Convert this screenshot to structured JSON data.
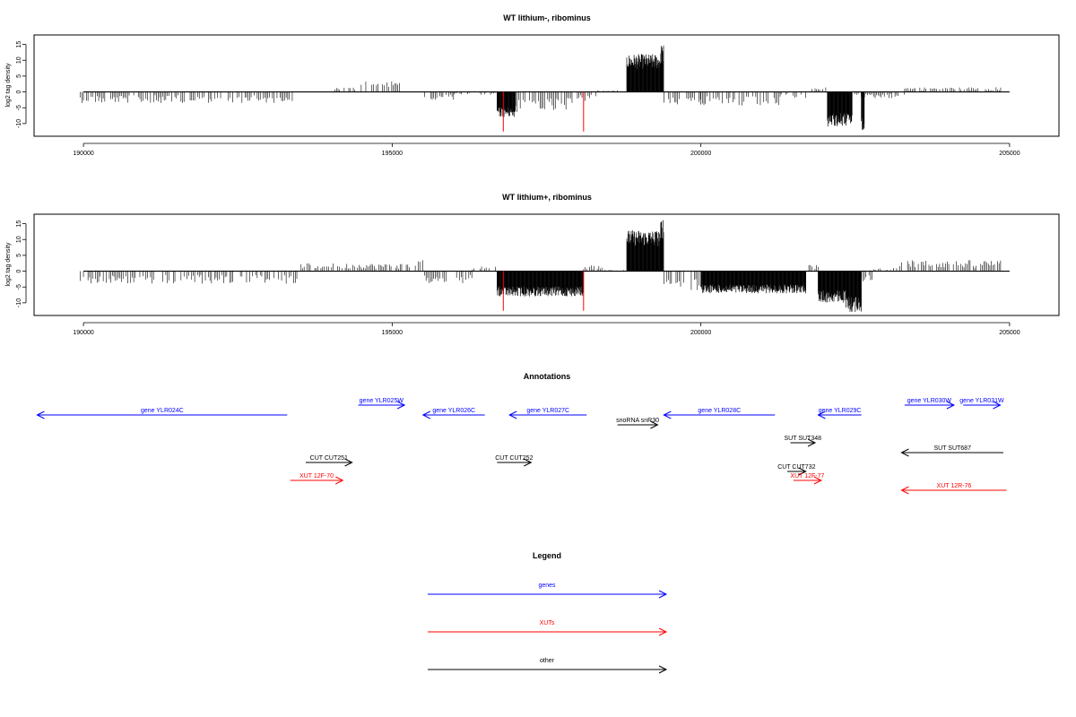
{
  "panels": [
    {
      "id": "lithium_minus",
      "title": "WT lithium-, ribominus",
      "ylabel": "log2 tag density",
      "chart_data": {
        "type": "bar",
        "title": "WT lithium-, ribominus",
        "xlabel": "",
        "ylabel": "log2 tag density",
        "xlim": [
          189200,
          205800
        ],
        "ylim": [
          -14,
          18
        ],
        "xticks": [
          190000,
          195000,
          200000,
          205000
        ],
        "yticks": [
          -10,
          -5,
          0,
          5,
          10,
          15
        ],
        "grid": false,
        "baseline": [
          190000,
          205000
        ],
        "markers": [
          196800,
          198100
        ],
        "marker_color": "#ff0000",
        "bar_color": "#000000",
        "segments": [
          [
            189950,
            193400,
            -3.5
          ],
          [
            193400,
            194050,
            0
          ],
          [
            194050,
            194400,
            1.5
          ],
          [
            194400,
            195200,
            3.5
          ],
          [
            195200,
            195500,
            0
          ],
          [
            195500,
            196000,
            -2.5
          ],
          [
            196000,
            196700,
            -1
          ],
          [
            196700,
            197000,
            -8
          ],
          [
            197000,
            198000,
            -6.5
          ],
          [
            198000,
            198300,
            -3
          ],
          [
            198300,
            198650,
            0.5
          ],
          [
            198650,
            198800,
            0
          ],
          [
            198800,
            199350,
            12
          ],
          [
            199350,
            199400,
            15
          ],
          [
            199400,
            200000,
            -4
          ],
          [
            200000,
            201300,
            -4.5
          ],
          [
            201300,
            201800,
            -2
          ],
          [
            201800,
            202050,
            1.5
          ],
          [
            202050,
            202450,
            -11
          ],
          [
            202450,
            202600,
            -2
          ],
          [
            202600,
            202650,
            -12
          ],
          [
            202650,
            203300,
            -2
          ],
          [
            203300,
            204900,
            1.5
          ]
        ]
      }
    },
    {
      "id": "lithium_plus",
      "title": "WT lithium+, ribominus",
      "ylabel": "log2 tag density",
      "chart_data": {
        "type": "bar",
        "title": "WT lithium+, ribominus",
        "xlabel": "",
        "ylabel": "log2 tag density",
        "xlim": [
          189200,
          205800
        ],
        "ylim": [
          -14,
          18
        ],
        "xticks": [
          190000,
          195000,
          200000,
          205000
        ],
        "yticks": [
          -10,
          -5,
          0,
          5,
          10,
          15
        ],
        "grid": false,
        "baseline": [
          190000,
          205000
        ],
        "markers": [
          196800,
          198100
        ],
        "marker_color": "#ff0000",
        "bar_color": "#000000",
        "segments": [
          [
            189950,
            193500,
            -4
          ],
          [
            193500,
            195300,
            2.5
          ],
          [
            195300,
            195500,
            3.5
          ],
          [
            195500,
            196300,
            -4
          ],
          [
            196300,
            196700,
            1.5
          ],
          [
            196700,
            198100,
            -8
          ],
          [
            198100,
            198400,
            2
          ],
          [
            198400,
            198800,
            0.5
          ],
          [
            198800,
            199350,
            13
          ],
          [
            199350,
            199400,
            17
          ],
          [
            199400,
            200000,
            -6
          ],
          [
            200000,
            201700,
            -7
          ],
          [
            201700,
            201900,
            2
          ],
          [
            201900,
            202350,
            -10
          ],
          [
            202350,
            202600,
            -13
          ],
          [
            202600,
            202800,
            -4
          ],
          [
            202800,
            203200,
            1
          ],
          [
            203200,
            204900,
            3.5
          ]
        ]
      }
    }
  ],
  "annotations": {
    "title": "Annotations",
    "xlim": [
      189200,
      205800
    ],
    "features": [
      {
        "label": "gene YLR024C",
        "start": 189250,
        "end": 193300,
        "dir": "left",
        "row": 2,
        "color": "#0000ff"
      },
      {
        "label": "gene YLR025W",
        "start": 194450,
        "end": 195200,
        "dir": "right",
        "row": 1,
        "color": "#0000ff"
      },
      {
        "label": "gene YLR026C",
        "start": 195500,
        "end": 196500,
        "dir": "left",
        "row": 2,
        "color": "#0000ff"
      },
      {
        "label": "gene YLR027C",
        "start": 196900,
        "end": 198150,
        "dir": "left",
        "row": 2,
        "color": "#0000ff"
      },
      {
        "label": "snoRNA snR30",
        "start": 198650,
        "end": 199300,
        "dir": "right",
        "row": 3,
        "color": "#000000"
      },
      {
        "label": "gene YLR028C",
        "start": 199400,
        "end": 201200,
        "dir": "left",
        "row": 2,
        "color": "#0000ff"
      },
      {
        "label": "gene YLR029C",
        "start": 201900,
        "end": 202600,
        "dir": "left",
        "row": 2,
        "color": "#0000ff"
      },
      {
        "label": "gene YLR030W",
        "start": 203300,
        "end": 204100,
        "dir": "right",
        "row": 1,
        "color": "#0000ff"
      },
      {
        "label": "gene YLR031W",
        "start": 204250,
        "end": 204850,
        "dir": "right",
        "row": 1,
        "color": "#0000ff"
      },
      {
        "label": "SUT SUT348",
        "start": 201450,
        "end": 201850,
        "dir": "right",
        "row": 4,
        "color": "#000000"
      },
      {
        "label": "SUT SUT687",
        "start": 203250,
        "end": 204900,
        "dir": "left",
        "row": 5,
        "color": "#000000"
      },
      {
        "label": "CUT CUT251",
        "start": 193600,
        "end": 194350,
        "dir": "right",
        "row": 6,
        "color": "#000000"
      },
      {
        "label": "CUT CUT252",
        "start": 196700,
        "end": 197250,
        "dir": "right",
        "row": 6,
        "color": "#000000"
      },
      {
        "label": "CUT CUT732",
        "start": 201400,
        "end": 201700,
        "dir": "right",
        "row": 7,
        "color": "#000000"
      },
      {
        "label": "XUT 12F-70",
        "start": 193350,
        "end": 194200,
        "dir": "right",
        "row": 8,
        "color": "#ff0000"
      },
      {
        "label": "XUT 12F-77",
        "start": 201500,
        "end": 201950,
        "dir": "right",
        "row": 8,
        "color": "#ff0000"
      },
      {
        "label": "XUT 12R-76",
        "start": 203250,
        "end": 204950,
        "dir": "left",
        "row": 9,
        "color": "#ff0000"
      }
    ]
  },
  "legend": {
    "title": "Legend",
    "items": [
      {
        "label": "genes",
        "color": "#0000ff"
      },
      {
        "label": "XUTs",
        "color": "#ff0000"
      },
      {
        "label": "other",
        "color": "#000000"
      }
    ]
  }
}
